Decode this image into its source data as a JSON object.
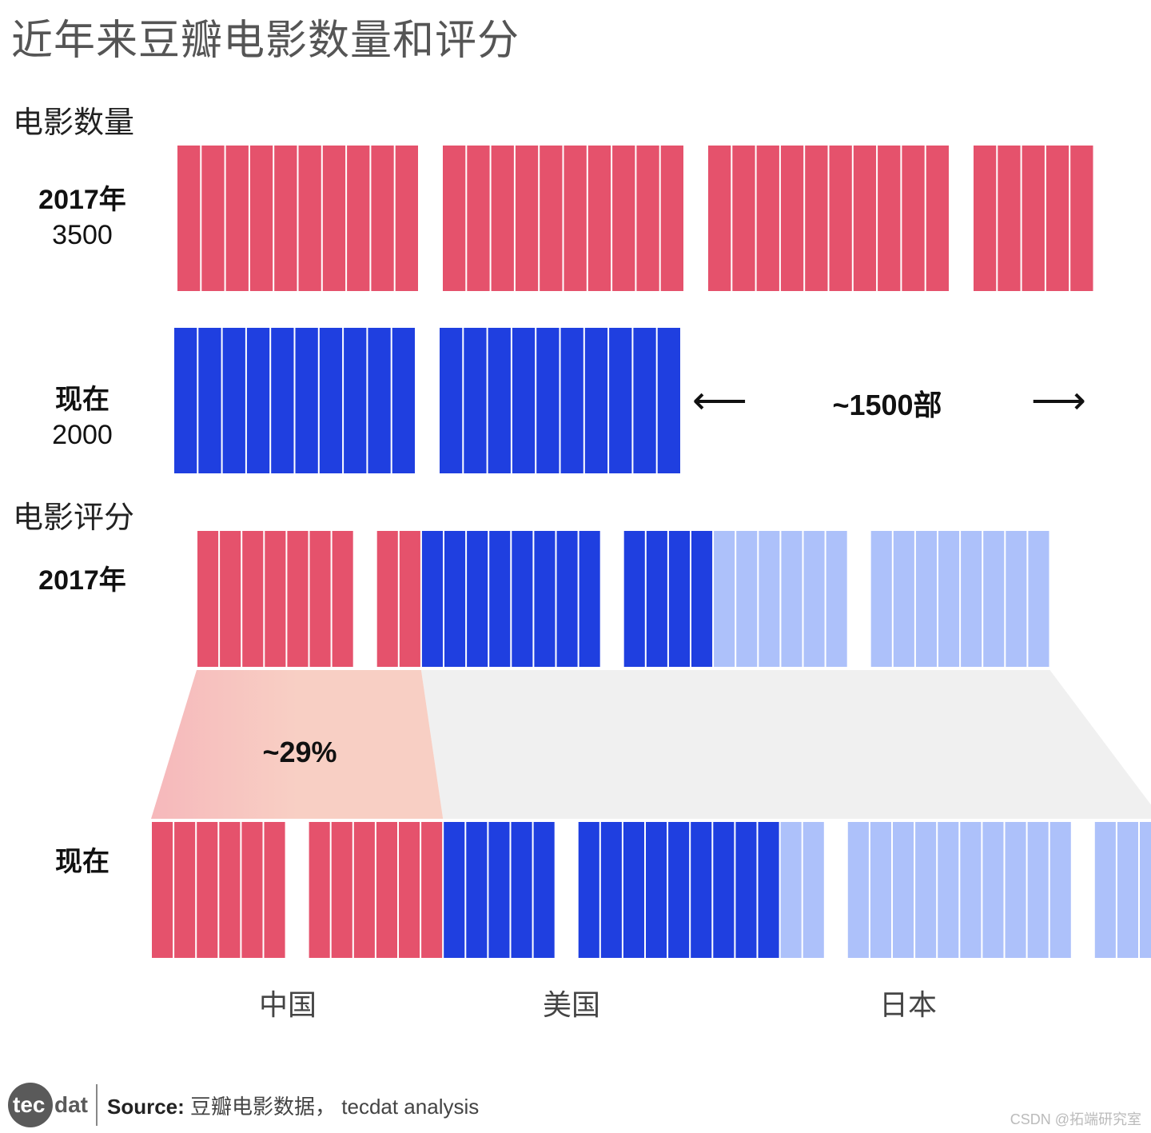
{
  "title": "近年来豆瓣电影数量和评分",
  "sections": {
    "count": "电影数量",
    "rating": "电影评分"
  },
  "row_labels": {
    "count_2017_year": "2017年",
    "count_2017_value": "3500",
    "count_now_year": "现在",
    "count_now_value": "2000",
    "rating_2017": "2017年",
    "rating_now": "现在"
  },
  "annotations": {
    "arrow_left": "⟵",
    "range": "~1500部",
    "arrow_right": "⟶",
    "percent": "~29%"
  },
  "countries": [
    "中国",
    "美国",
    "日本"
  ],
  "footer": {
    "logo_tec": "tec",
    "logo_dat": "dat",
    "source_label": "Source:",
    "source_text": " 豆瓣电影数据， tecdat analysis"
  },
  "watermark": "CSDN @拓端研究室",
  "colors": {
    "china": "#e5526c",
    "usa": "#1f3fe0",
    "japan": "#adc1fa",
    "count_2017": "#e5526c",
    "count_now": "#1f3fe0",
    "highlight_band": "#f8cfc4",
    "rest_band": "#f0f0f0"
  },
  "chart_data": [
    {
      "type": "bar",
      "title": "电影数量",
      "unit": "部",
      "categories": [
        "2017年",
        "现在"
      ],
      "values": [
        3500,
        2000
      ],
      "difference": 1500,
      "difference_label": "~1500部"
    },
    {
      "type": "bar",
      "title": "电影评分",
      "stacked": true,
      "categories": [
        "2017年",
        "现在"
      ],
      "series": [
        {
          "name": "中国",
          "values": [
            9,
            12
          ]
        },
        {
          "name": "美国",
          "values": [
            12,
            14
          ]
        },
        {
          "name": "日本",
          "values": [
            14,
            15
          ]
        }
      ],
      "annotation": "~29%"
    }
  ]
}
